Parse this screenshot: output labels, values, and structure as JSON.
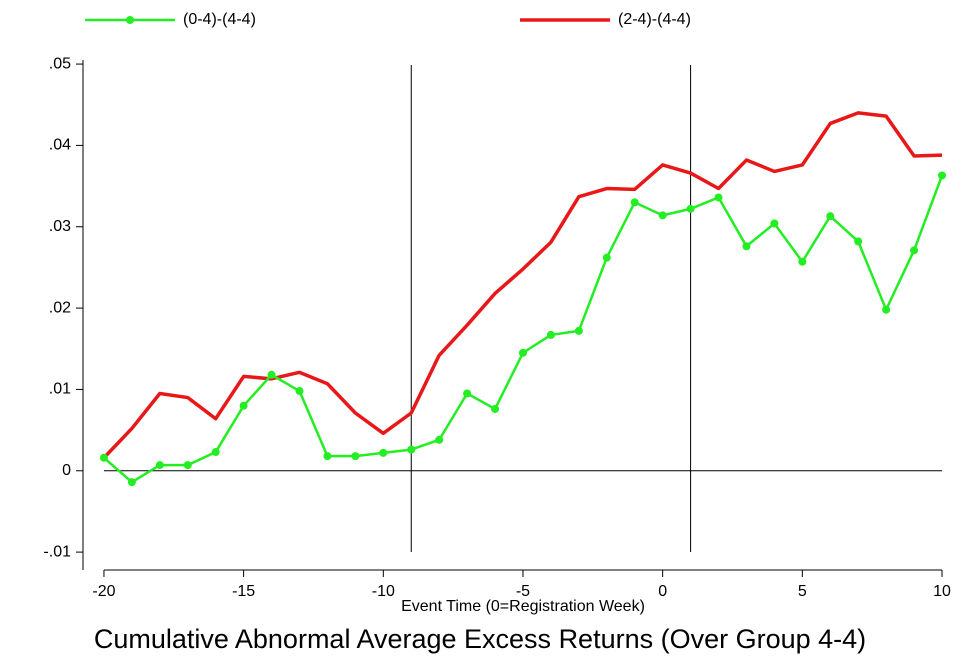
{
  "chart_data": {
    "type": "line",
    "title": "Cumulative Abnormal Average Excess Returns (Over Group 4-4)",
    "x_label": "Event Time (0=Registration Week)",
    "x": [
      -20,
      -19,
      -18,
      -17,
      -16,
      -15,
      -14,
      -13,
      -12,
      -11,
      -10,
      -9,
      -8,
      -7,
      -6,
      -5,
      -4,
      -3,
      -2,
      -1,
      0,
      1,
      2,
      3,
      4,
      5,
      6,
      7,
      8,
      9,
      10
    ],
    "series": [
      {
        "name": "(0-4)-(4-4)",
        "color": "#22ee22",
        "markers": true,
        "values": [
          0.0016,
          -0.0014,
          0.0007,
          0.0007,
          0.0023,
          0.008,
          0.0118,
          0.0098,
          0.0018,
          0.0018,
          0.0022,
          0.0026,
          0.0038,
          0.0095,
          0.0076,
          0.0145,
          0.0167,
          0.0172,
          0.0262,
          0.033,
          0.0314,
          0.0322,
          0.0336,
          0.0276,
          0.0304,
          0.0257,
          0.0313,
          0.0282,
          0.0198,
          0.0271,
          0.0363
        ]
      },
      {
        "name": "(2-4)-(4-4)",
        "color": "#e81818",
        "markers": false,
        "values": [
          0.0016,
          0.0052,
          0.0095,
          0.009,
          0.0064,
          0.0116,
          0.0113,
          0.0121,
          0.0107,
          0.0071,
          0.0046,
          0.0071,
          0.0142,
          0.0179,
          0.0218,
          0.0248,
          0.0281,
          0.0337,
          0.0347,
          0.0346,
          0.0376,
          0.0366,
          0.0347,
          0.0382,
          0.0368,
          0.0376,
          0.0427,
          0.044,
          0.0436,
          0.0387,
          0.0388
        ]
      }
    ],
    "xlim": [
      -20.75,
      10
    ],
    "xticks": [
      -20,
      -15,
      -10,
      -5,
      0,
      5,
      10
    ],
    "ylim": [
      -0.0122,
      0.0505
    ],
    "yticks": [
      {
        "value": -0.01,
        "label": "-.01"
      },
      0,
      {
        "value": 0.01,
        "label": ".01"
      },
      {
        "value": 0.02,
        "label": ".02"
      },
      {
        "value": 0.03,
        "label": ".03"
      },
      {
        "value": 0.04,
        "label": ".04"
      },
      {
        "value": 0.05,
        "label": ".05"
      }
    ],
    "vlines": [
      -9,
      1
    ],
    "hline": 0,
    "grid": false
  }
}
